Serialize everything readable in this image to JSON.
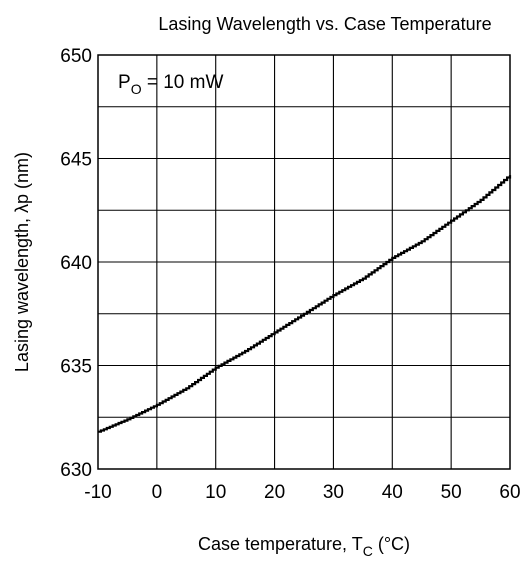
{
  "chart_data": {
    "type": "line",
    "title": "Lasing Wavelength vs. Case Temperature",
    "xlabel": {
      "main": "Case temperature,  T",
      "sub": "C",
      "unit": "  (°C)"
    },
    "ylabel": "Lasing wavelength,  λp  (nm)",
    "annotation": {
      "main": "P",
      "sub": "O",
      "rest": " = 10 mW"
    },
    "xlim": [
      -10,
      60
    ],
    "ylim": [
      630,
      650
    ],
    "xticks": [
      -10,
      0,
      10,
      20,
      30,
      40,
      50,
      60
    ],
    "yticks": [
      630,
      635,
      640,
      645,
      650
    ],
    "xtick_labels": [
      "-10",
      "0",
      "10",
      "20",
      "30",
      "40",
      "50",
      "60"
    ],
    "ytick_labels": [
      "630",
      "635",
      "640",
      "645",
      "650"
    ],
    "grid": true,
    "step_curve": true,
    "series": [
      {
        "x": [
          -10,
          -5,
          0,
          5,
          10,
          15,
          20,
          25,
          30,
          35,
          40,
          45,
          50,
          55,
          60
        ],
        "y": [
          631.8,
          632.4,
          633.1,
          633.9,
          634.9,
          635.7,
          636.6,
          637.5,
          638.4,
          639.2,
          640.2,
          641.0,
          642.0,
          643.0,
          644.2
        ]
      }
    ],
    "line_color": "#000000"
  }
}
